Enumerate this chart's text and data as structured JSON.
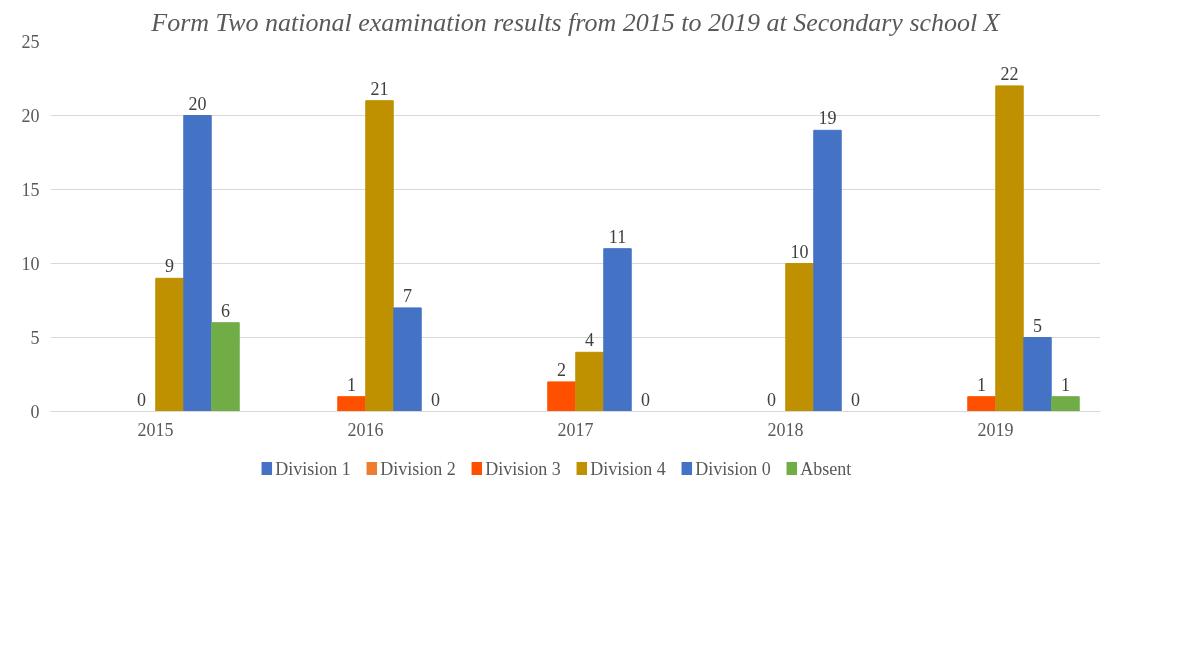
{
  "chart_data": {
    "type": "bar",
    "title": "Form Two national examination results from 2015 to 2019 at Secondary school X",
    "categories": [
      "2015",
      "2016",
      "2017",
      "2018",
      "2019"
    ],
    "series": [
      {
        "name": "Division 1",
        "color": "#4472c4",
        "values": [
          null,
          null,
          null,
          null,
          null
        ]
      },
      {
        "name": "Division 2",
        "color": "#ed7d31",
        "values": [
          null,
          null,
          null,
          null,
          null
        ]
      },
      {
        "name": "Division 3",
        "color": "#ff5000",
        "values": [
          0,
          1,
          2,
          0,
          1
        ]
      },
      {
        "name": "Division 4",
        "color": "#bf9000",
        "values": [
          9,
          21,
          4,
          10,
          22
        ]
      },
      {
        "name": "Division 0",
        "color": "#4472c4",
        "values": [
          20,
          7,
          11,
          19,
          5
        ]
      },
      {
        "name": "Absent",
        "color": "#70ad47",
        "values": [
          6,
          0,
          0,
          0,
          1
        ]
      }
    ],
    "ylim": [
      0,
      25
    ],
    "yticks": [
      0,
      5,
      10,
      15,
      20,
      25
    ],
    "grid": "y",
    "legend": "bottom",
    "data_labels": true
  }
}
